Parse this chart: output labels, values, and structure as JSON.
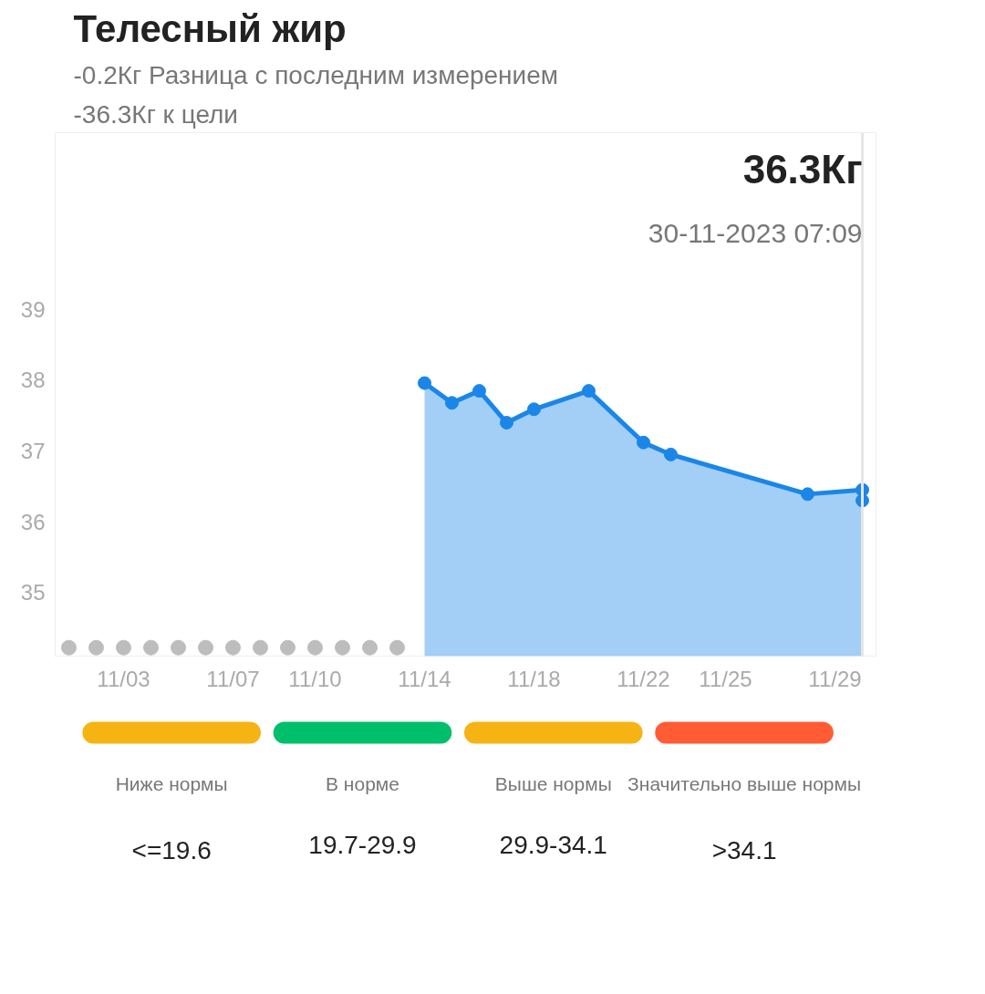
{
  "chart_data": [
    {
      "type": "area",
      "title": "Телесный жир",
      "subtitle": "-0.2Кг Разница с последним измерением",
      "annotations": [
        "-36.3Кг к цели",
        "36.3Кг",
        "30-11-2023 07:09"
      ],
      "ylim": [
        34.1,
        41.5
      ],
      "yticks": [
        35,
        36,
        37,
        38,
        39
      ],
      "xlim": [
        "--10-31T12:00",
        "--11-30T12:00"
      ],
      "xticks": [
        {
          "value": "--11-03",
          "label": "11/03"
        },
        {
          "value": "--11-07",
          "label": "11/07"
        },
        {
          "value": "--11-10",
          "label": "11/10"
        },
        {
          "value": "--11-14",
          "label": "11/14"
        },
        {
          "value": "--11-18",
          "label": "11/18"
        },
        {
          "value": "--11-22",
          "label": "11/22"
        },
        {
          "value": "--11-25",
          "label": "11/25"
        },
        {
          "value": "--11-29",
          "label": "11/29"
        }
      ],
      "grid": false,
      "marker": "circle",
      "ref_lines": [
        {
          "axis": "x",
          "value": "--11-30",
          "color": "#e6e6e6"
        }
      ],
      "series": [
        {
          "type": "scatter",
          "color": "#bdbdbd",
          "x": [
            "--11-01",
            "--11-02",
            "--11-03",
            "--11-04",
            "--11-05",
            "--11-06",
            "--11-07",
            "--11-08",
            "--11-09",
            "--11-10",
            "--11-11",
            "--11-12",
            "--11-13"
          ],
          "values": [
            34.22,
            34.22,
            34.22,
            34.22,
            34.22,
            34.22,
            34.22,
            34.22,
            34.22,
            34.22,
            34.22,
            34.22,
            34.22
          ]
        },
        {
          "type": "area",
          "color": "#1a86e8",
          "x": [
            "--11-14",
            "--11-15",
            "--11-16",
            "--11-17",
            "--11-18",
            "--11-20",
            "--11-22",
            "--11-23",
            "--11-28",
            "--11-30",
            "--11-30"
          ],
          "values": [
            37.96,
            37.68,
            37.85,
            37.4,
            37.59,
            37.85,
            37.12,
            36.95,
            36.39,
            36.45,
            36.3
          ]
        }
      ]
    },
    {
      "type": "other",
      "categories": [
        "Ниже нормы",
        "В норме",
        "Выше нормы",
        "Значительно выше нормы"
      ],
      "value_labels": [
        "<=19.6",
        "19.7-29.9",
        "29.9-34.1",
        ">34.1"
      ],
      "colors": [
        "#f6b314",
        "#00bf6a",
        "#f6b314",
        "#ff5c35"
      ]
    }
  ]
}
